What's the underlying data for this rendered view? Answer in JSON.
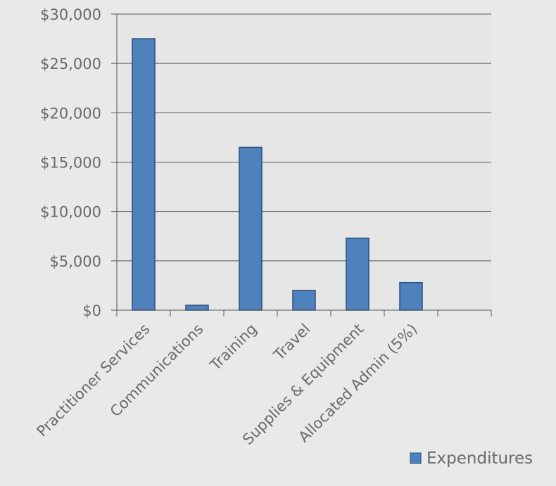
{
  "chart_data": {
    "type": "bar",
    "categories": [
      "Practitioner Services",
      "Communications",
      "Training",
      "Travel",
      "Supplies & Equipment",
      "Allocated Admin (5%)",
      ""
    ],
    "series": [
      {
        "name": "Expenditures",
        "values": [
          27500,
          500,
          16500,
          2000,
          7300,
          2800,
          null
        ]
      }
    ],
    "y_ticks": [
      "$0",
      "$5,000",
      "$10,000",
      "$15,000",
      "$20,000",
      "$25,000",
      "$30,000"
    ],
    "ylim": [
      0,
      30000
    ],
    "y_tick_step": 5000,
    "grid": true,
    "legend_position": "bottom-right",
    "colors": {
      "background": "#e9e9e9",
      "bar_fill": "#4f81bd",
      "bar_stroke": "#2c4f7c",
      "grid": "#555555",
      "axis": "#555555",
      "text": "#6a6a6a"
    }
  }
}
